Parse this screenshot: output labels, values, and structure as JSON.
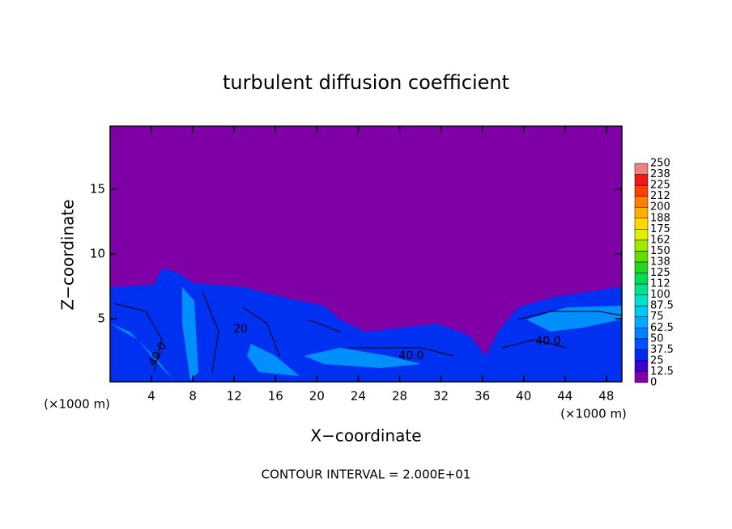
{
  "chart_data": {
    "type": "contour",
    "title": "turbulent diffusion coefficient",
    "xlabel": "X−coordinate",
    "ylabel": "Z−coordinate",
    "x_unit": "(×1000 m)",
    "x_unit_right": "(×1000 m)",
    "footer": "CONTOUR INTERVAL = 2.000E+01",
    "xlim": [
      0,
      49.5
    ],
    "xticks": [
      4,
      8,
      12,
      16,
      20,
      24,
      28,
      32,
      36,
      40,
      44,
      48
    ],
    "ylim": [
      0.125,
      19.875
    ],
    "yticks": [
      5,
      10,
      15
    ],
    "colorbar": {
      "levels": [
        0,
        12.5,
        25,
        37.5,
        50,
        62.5,
        75,
        87.5,
        100,
        112,
        125,
        138,
        150,
        162,
        175,
        188,
        200,
        212,
        225,
        238,
        250
      ],
      "colors": [
        "#8000a8",
        "#3c00d0",
        "#0028f0",
        "#0050ff",
        "#0080ff",
        "#00a8ff",
        "#00c8f0",
        "#00e0c8",
        "#00e090",
        "#00dc50",
        "#20d820",
        "#60e000",
        "#a0e800",
        "#e0f000",
        "#ffd800",
        "#ffb000",
        "#ff8000",
        "#ff4000",
        "#f01818",
        "#f08080"
      ]
    },
    "annotations": [
      "40.0",
      "40.0",
      "40.0",
      "20"
    ]
  }
}
